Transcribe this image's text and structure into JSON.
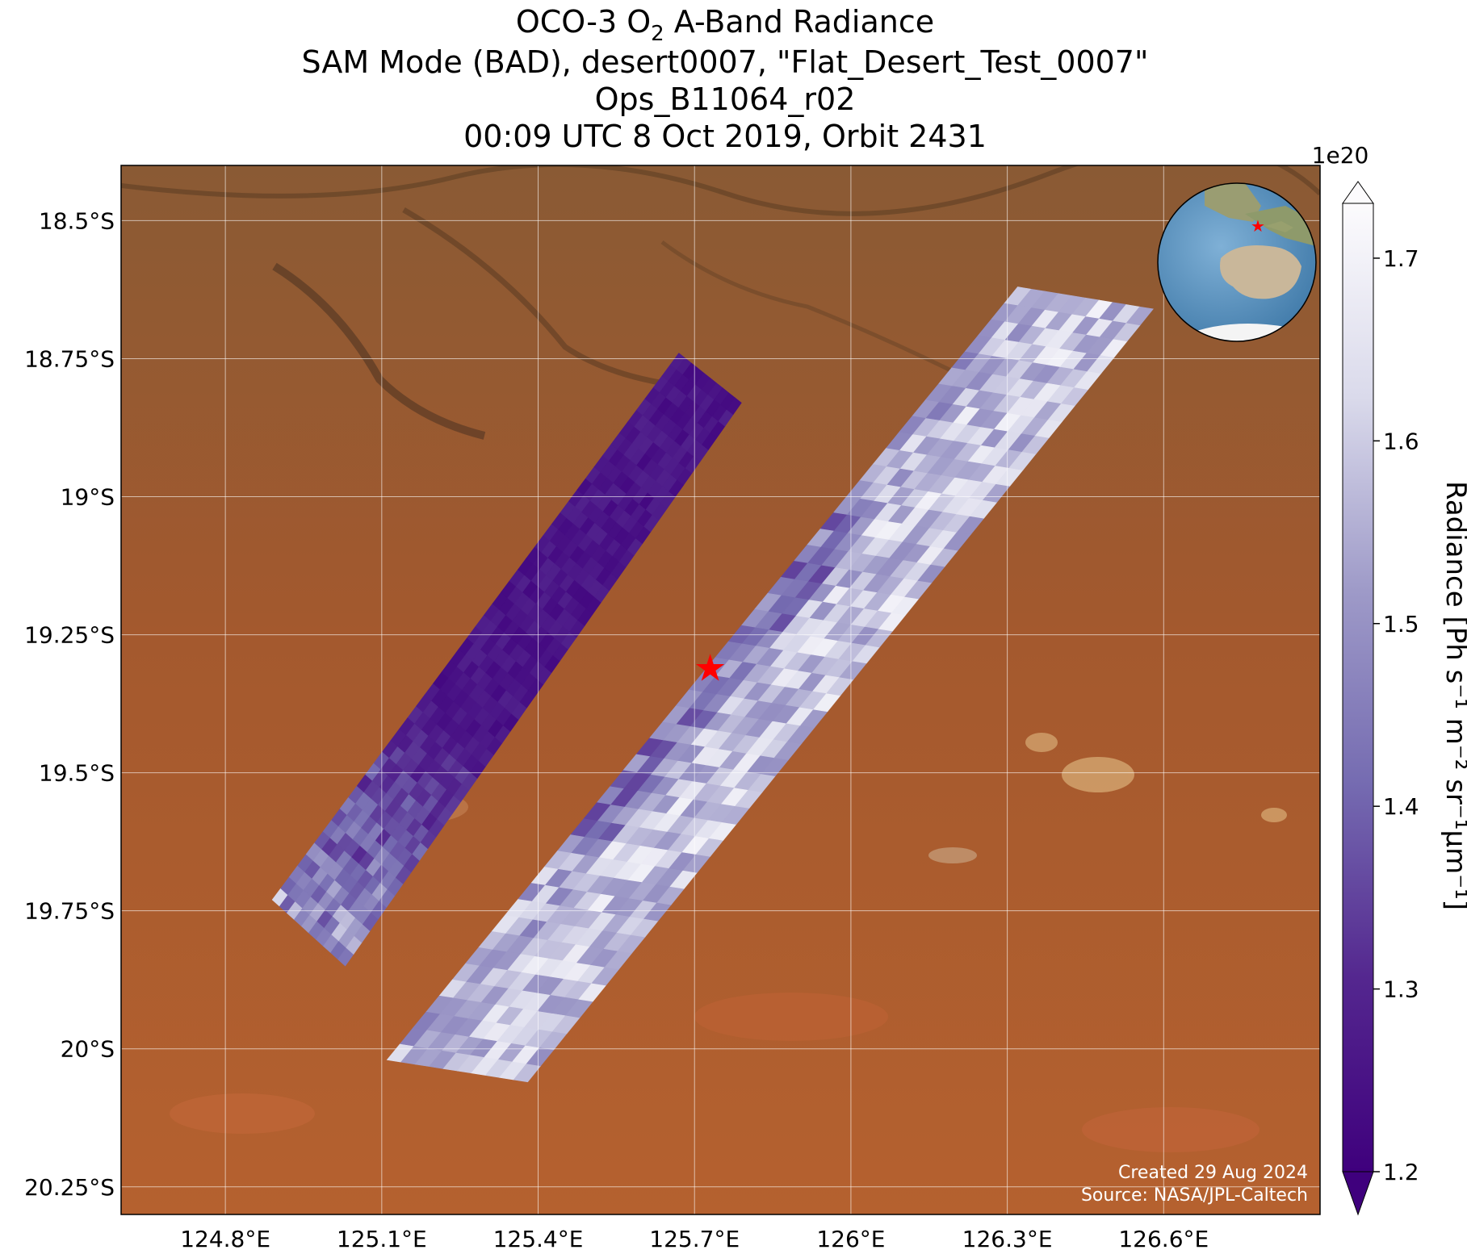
{
  "title": {
    "line1_prefix": "OCO-3 O",
    "line1_sub": "2",
    "line1_suffix": " A-Band Radiance",
    "line2": "SAM Mode (BAD), desert0007, \"Flat_Desert_Test_0007\"",
    "line3": "Ops_B11064_r02",
    "line4": "00:09 UTC 8 Oct 2019, Orbit 2431"
  },
  "map": {
    "lon_range": [
      124.6,
      126.9
    ],
    "lat_range": [
      -20.3,
      -18.4
    ],
    "lon_ticks": [
      {
        "value": 124.8,
        "label": "124.8°E"
      },
      {
        "value": 125.1,
        "label": "125.1°E"
      },
      {
        "value": 125.4,
        "label": "125.4°E"
      },
      {
        "value": 125.7,
        "label": "125.7°E"
      },
      {
        "value": 126.0,
        "label": "126°E"
      },
      {
        "value": 126.3,
        "label": "126.3°E"
      },
      {
        "value": 126.6,
        "label": "126.6°E"
      }
    ],
    "lat_ticks": [
      {
        "value": -18.5,
        "label": "18.5°S"
      },
      {
        "value": -18.75,
        "label": "18.75°S"
      },
      {
        "value": -19.0,
        "label": "19°S"
      },
      {
        "value": -19.25,
        "label": "19.25°S"
      },
      {
        "value": -19.5,
        "label": "19.5°S"
      },
      {
        "value": -19.75,
        "label": "19.75°S"
      },
      {
        "value": -20.0,
        "label": "20°S"
      },
      {
        "value": -20.25,
        "label": "20.25°S"
      }
    ],
    "background": "satellite imagery, arid red-brown desert",
    "target_marker": {
      "lon": 125.73,
      "lat": -19.31,
      "color": "#ff0000",
      "icon": "star-icon"
    },
    "swaths": [
      {
        "name": "western swath",
        "corners_lonlat": [
          [
            124.89,
            -19.73
          ],
          [
            125.03,
            -19.85
          ],
          [
            125.79,
            -18.83
          ],
          [
            125.67,
            -18.74
          ]
        ],
        "radiance_range": [
          1.18,
          1.62
        ],
        "dominant": "dark purple"
      },
      {
        "name": "eastern swath",
        "corners_lonlat": [
          [
            125.11,
            -20.02
          ],
          [
            125.38,
            -20.06
          ],
          [
            126.58,
            -18.66
          ],
          [
            126.32,
            -18.62
          ]
        ],
        "radiance_range": [
          1.3,
          1.72
        ],
        "dominant": "white / light lavender"
      }
    ],
    "inset_globe": {
      "icon": "globe-icon",
      "marker_icon": "star-icon",
      "region": "Australia / Indian Ocean / Antarctica"
    }
  },
  "colorbar": {
    "colormap": "Purples_r",
    "min": 1.2,
    "max": 1.73,
    "extend": "both",
    "exponent_label": "1e20",
    "ticks": [
      "1.2",
      "1.3",
      "1.4",
      "1.5",
      "1.6",
      "1.7"
    ],
    "tick_values": [
      1.2,
      1.3,
      1.4,
      1.5,
      1.6,
      1.7
    ],
    "label": "Radiance [Ph s⁻¹ m⁻² sr⁻¹μm⁻¹]",
    "color_low": "#3f007d",
    "color_mid": "#9e9ac8",
    "color_high": "#fcfbfd"
  },
  "credits": {
    "created": "Created 29 Aug 2024",
    "source": "Source: NASA/JPL-Caltech"
  }
}
